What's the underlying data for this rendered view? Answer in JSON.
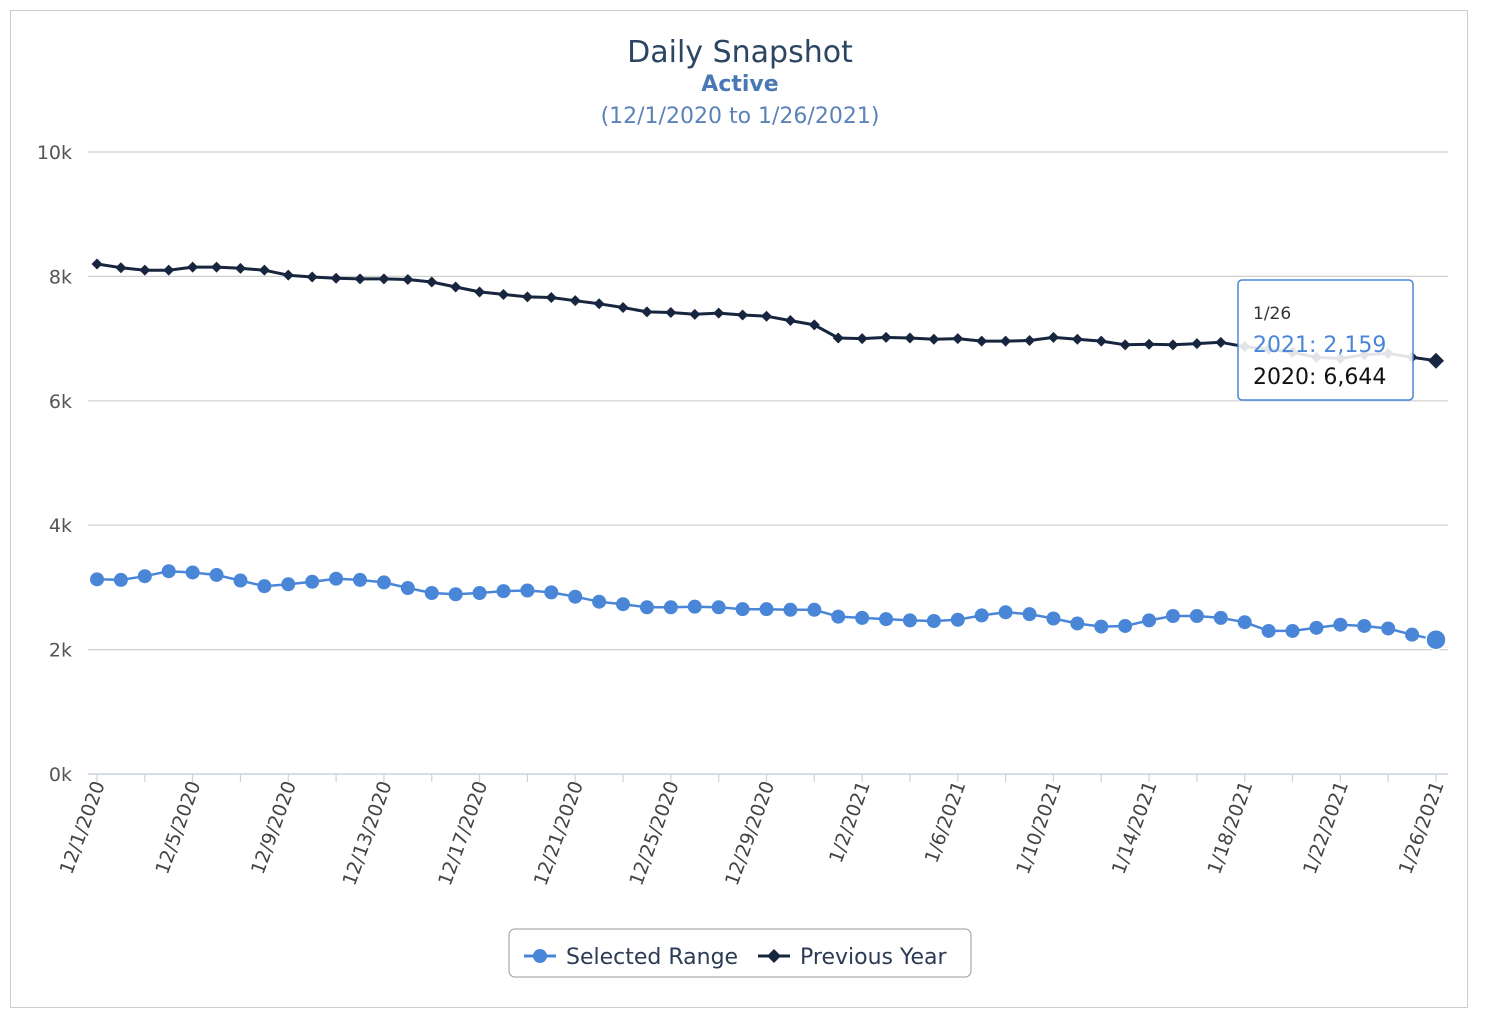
{
  "chart_data": {
    "type": "line",
    "title": "Daily Snapshot",
    "subtitle": "Active",
    "date_range": "(12/1/2020 to 1/26/2021)",
    "ylim": [
      0,
      10000
    ],
    "y_ticks": [
      "0k",
      "2k",
      "4k",
      "6k",
      "8k",
      "10k"
    ],
    "x_tick_labels": [
      "12/1/2020",
      "12/5/2020",
      "12/9/2020",
      "12/13/2020",
      "12/17/2020",
      "12/21/2020",
      "12/25/2020",
      "12/29/2020",
      "1/2/2021",
      "1/6/2021",
      "1/10/2021",
      "1/14/2021",
      "1/18/2021",
      "1/22/2021",
      "1/26/2021"
    ],
    "grid": true,
    "legend_position": "bottom-center",
    "series": [
      {
        "name": "Selected Range",
        "color": "#4a86d8",
        "marker": "circle",
        "values": [
          3130,
          3120,
          3180,
          3260,
          3240,
          3200,
          3110,
          3020,
          3050,
          3090,
          3140,
          3120,
          3080,
          2990,
          2910,
          2890,
          2910,
          2940,
          2950,
          2920,
          2850,
          2770,
          2730,
          2680,
          2680,
          2690,
          2680,
          2650,
          2650,
          2640,
          2640,
          2530,
          2510,
          2490,
          2470,
          2460,
          2480,
          2550,
          2600,
          2570,
          2500,
          2420,
          2370,
          2380,
          2470,
          2540,
          2540,
          2510,
          2440,
          2300,
          2300,
          2350,
          2400,
          2380,
          2340,
          2240,
          2159
        ]
      },
      {
        "name": "Previous Year",
        "color": "#17253f",
        "marker": "diamond",
        "values": [
          8200,
          8140,
          8100,
          8100,
          8150,
          8150,
          8130,
          8100,
          8020,
          7990,
          7970,
          7960,
          7960,
          7950,
          7910,
          7830,
          7750,
          7710,
          7670,
          7660,
          7610,
          7560,
          7500,
          7430,
          7420,
          7390,
          7410,
          7380,
          7360,
          7290,
          7220,
          7010,
          7000,
          7020,
          7010,
          6990,
          7000,
          6960,
          6960,
          6970,
          7020,
          6990,
          6960,
          6900,
          6910,
          6900,
          6920,
          6940,
          6870,
          6830,
          6780,
          6700,
          6680,
          6740,
          6760,
          6700,
          6644
        ]
      }
    ],
    "tooltip": {
      "date": "1/26",
      "line_a": "2021: 2,159",
      "line_b": "2020: 6,644"
    }
  }
}
